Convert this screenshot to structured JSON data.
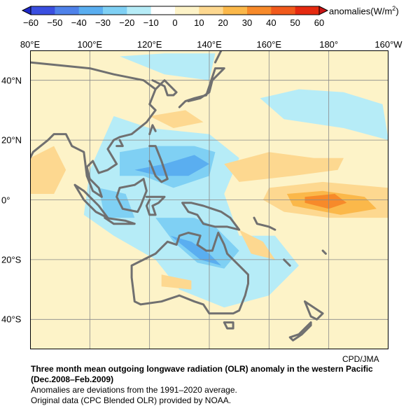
{
  "colorbar": {
    "unit_label": "anomalies(W/m",
    "unit_sup": "2",
    "unit_close": ")",
    "ticks": [
      "−60",
      "−50",
      "−40",
      "−30",
      "−20",
      "−10",
      "0",
      "10",
      "20",
      "30",
      "40",
      "50",
      "60"
    ],
    "colors": [
      "#3a4fe0",
      "#4f82ea",
      "#5aaef0",
      "#7fd0f4",
      "#b6ecf7",
      "#ffffff",
      "#fdf3c8",
      "#fdd890",
      "#fbb84a",
      "#f78a2a",
      "#f15a1c",
      "#e52a10"
    ]
  },
  "map": {
    "lon_labels": [
      "80°E",
      "100°E",
      "120°E",
      "140°E",
      "160°E",
      "180°",
      "160°W"
    ],
    "lat_labels": [
      "40°N",
      "20°N",
      "0°",
      "20°S",
      "40°S"
    ],
    "extent": {
      "lon": [
        80,
        200
      ],
      "lat": [
        -50,
        50
      ]
    },
    "grid_lons": [
      100,
      120,
      140,
      160,
      180
    ],
    "grid_lats": [
      40,
      20,
      0,
      -20,
      -40
    ],
    "coast_color": "#707070",
    "anomaly_regions": [
      {
        "level": "pos10",
        "pts": [
          [
            80,
            44
          ],
          [
            110,
            44
          ],
          [
            130,
            48
          ],
          [
            160,
            46
          ],
          [
            200,
            46
          ],
          [
            200,
            -30
          ],
          [
            180,
            -40
          ],
          [
            150,
            -30
          ],
          [
            120,
            -40
          ],
          [
            90,
            -45
          ],
          [
            80,
            -40
          ]
        ]
      },
      {
        "level": "neg10",
        "pts": [
          [
            108,
            28
          ],
          [
            120,
            24
          ],
          [
            140,
            22
          ],
          [
            150,
            14
          ],
          [
            145,
            2
          ],
          [
            150,
            -12
          ],
          [
            162,
            -12
          ],
          [
            170,
            -22
          ],
          [
            160,
            -32
          ],
          [
            145,
            -36
          ],
          [
            130,
            -30
          ],
          [
            122,
            -20
          ],
          [
            108,
            -12
          ],
          [
            98,
            -5
          ],
          [
            100,
            10
          ]
        ]
      },
      {
        "level": "neg10",
        "pts": [
          [
            157,
            34
          ],
          [
            170,
            37
          ],
          [
            185,
            36
          ],
          [
            198,
            32
          ],
          [
            200,
            20
          ],
          [
            185,
            24
          ],
          [
            165,
            27
          ]
        ]
      },
      {
        "level": "neg10",
        "pts": [
          [
            110,
            48
          ],
          [
            125,
            49
          ],
          [
            142,
            49
          ],
          [
            140,
            40
          ],
          [
            125,
            42
          ]
        ]
      },
      {
        "level": "neg20",
        "pts": [
          [
            110,
            16
          ],
          [
            122,
            18
          ],
          [
            135,
            18
          ],
          [
            142,
            16
          ],
          [
            140,
            8
          ],
          [
            128,
            4
          ],
          [
            118,
            8
          ],
          [
            110,
            8
          ]
        ]
      },
      {
        "level": "neg20",
        "pts": [
          [
            122,
            -6
          ],
          [
            135,
            -6
          ],
          [
            142,
            -9
          ],
          [
            150,
            -17
          ],
          [
            145,
            -23
          ],
          [
            136,
            -21
          ],
          [
            128,
            -14
          ]
        ]
      },
      {
        "level": "neg20",
        "pts": [
          [
            103,
            4
          ],
          [
            112,
            2
          ],
          [
            115,
            -6
          ],
          [
            105,
            -6
          ]
        ]
      },
      {
        "level": "neg30",
        "pts": [
          [
            115,
            10
          ],
          [
            125,
            12
          ],
          [
            135,
            15
          ],
          [
            140,
            12
          ],
          [
            133,
            8
          ],
          [
            123,
            8
          ]
        ]
      },
      {
        "level": "neg30",
        "pts": [
          [
            127,
            -12
          ],
          [
            134,
            -14
          ],
          [
            140,
            -18
          ],
          [
            144,
            -22
          ],
          [
            137,
            -20
          ]
        ]
      },
      {
        "level": "pos10",
        "pts": [
          [
            80,
            18
          ],
          [
            90,
            22
          ],
          [
            96,
            14
          ],
          [
            92,
            0
          ],
          [
            85,
            -4
          ],
          [
            80,
            -2
          ]
        ]
      },
      {
        "level": "pos20",
        "pts": [
          [
            80,
            14
          ],
          [
            88,
            18
          ],
          [
            92,
            10
          ],
          [
            88,
            2
          ],
          [
            80,
            2
          ]
        ]
      },
      {
        "level": "pos20",
        "pts": [
          [
            120,
            28
          ],
          [
            132,
            30
          ],
          [
            138,
            26
          ],
          [
            128,
            24
          ]
        ]
      },
      {
        "level": "pos20",
        "pts": [
          [
            124,
            -25
          ],
          [
            134,
            -27
          ],
          [
            134,
            -30
          ],
          [
            124,
            -29
          ]
        ]
      },
      {
        "level": "pos20",
        "pts": [
          [
            145,
            12
          ],
          [
            160,
            16
          ],
          [
            175,
            14
          ],
          [
            185,
            14
          ],
          [
            183,
            10
          ],
          [
            168,
            8
          ],
          [
            150,
            6
          ]
        ]
      },
      {
        "level": "pos20",
        "pts": [
          [
            150,
            -10
          ],
          [
            158,
            -14
          ],
          [
            162,
            -20
          ],
          [
            154,
            -18
          ]
        ]
      },
      {
        "level": "pos20",
        "pts": [
          [
            160,
            4
          ],
          [
            178,
            6
          ],
          [
            200,
            4
          ],
          [
            200,
            -6
          ],
          [
            180,
            -6
          ],
          [
            165,
            -4
          ],
          [
            158,
            0
          ]
        ]
      },
      {
        "level": "pos30",
        "pts": [
          [
            166,
            2
          ],
          [
            178,
            3
          ],
          [
            192,
            1
          ],
          [
            196,
            -3
          ],
          [
            184,
            -5
          ],
          [
            168,
            -2
          ]
        ]
      },
      {
        "level": "pos40",
        "pts": [
          [
            172,
            1
          ],
          [
            182,
            2
          ],
          [
            186,
            -1
          ],
          [
            180,
            -3
          ],
          [
            172,
            -1
          ]
        ]
      }
    ],
    "coastlines": [
      [
        [
          80,
          46
        ],
        [
          90,
          45
        ],
        [
          100,
          44
        ],
        [
          108,
          42
        ],
        [
          118,
          40
        ],
        [
          122,
          37
        ],
        [
          120,
          32
        ],
        [
          122,
          30
        ],
        [
          119,
          26
        ],
        [
          114,
          22
        ],
        [
          110,
          21
        ],
        [
          108,
          20
        ],
        [
          106,
          17
        ],
        [
          109,
          12
        ],
        [
          106,
          10
        ],
        [
          103,
          9
        ],
        [
          101,
          13
        ],
        [
          99,
          11
        ],
        [
          100,
          7
        ],
        [
          103,
          4
        ],
        [
          104,
          1
        ],
        [
          101,
          3
        ],
        [
          99,
          8
        ],
        [
          98,
          16
        ],
        [
          94,
          18
        ],
        [
          92,
          22
        ],
        [
          88,
          22
        ],
        [
          86,
          20
        ],
        [
          81,
          16
        ],
        [
          80,
          14
        ]
      ],
      [
        [
          122,
          37
        ],
        [
          125,
          40
        ],
        [
          129,
          36
        ],
        [
          128,
          35
        ],
        [
          126,
          35
        ],
        [
          125,
          38
        ],
        [
          121,
          40
        ]
      ],
      [
        [
          130,
          31
        ],
        [
          132,
          33
        ],
        [
          135,
          34
        ],
        [
          139,
          35
        ],
        [
          140,
          38
        ],
        [
          141,
          41
        ],
        [
          142,
          44
        ],
        [
          145,
          44
        ],
        [
          141,
          40
        ],
        [
          140,
          36
        ],
        [
          137,
          34
        ],
        [
          133,
          33
        ]
      ],
      [
        [
          142,
          46
        ],
        [
          144,
          50
        ],
        [
          143,
          52
        ]
      ],
      [
        [
          120,
          22
        ],
        [
          121,
          25
        ],
        [
          122,
          23
        ]
      ],
      [
        [
          110,
          20
        ],
        [
          111,
          18
        ],
        [
          109,
          18
        ]
      ],
      [
        [
          120,
          18
        ],
        [
          122,
          18
        ],
        [
          124,
          13
        ],
        [
          125,
          10
        ],
        [
          126,
          7
        ],
        [
          124,
          6
        ],
        [
          122,
          8
        ],
        [
          120,
          13
        ]
      ],
      [
        [
          95,
          5
        ],
        [
          98,
          3
        ],
        [
          103,
          -2
        ],
        [
          106,
          -6
        ],
        [
          102,
          -4
        ],
        [
          98,
          0
        ],
        [
          95,
          5
        ]
      ],
      [
        [
          105,
          -6
        ],
        [
          112,
          -7
        ],
        [
          115,
          -8
        ],
        [
          108,
          -8
        ],
        [
          105,
          -6
        ]
      ],
      [
        [
          109,
          1
        ],
        [
          110,
          4
        ],
        [
          115,
          5
        ],
        [
          118,
          7
        ],
        [
          119,
          3
        ],
        [
          117,
          -2
        ],
        [
          116,
          -4
        ],
        [
          111,
          -3
        ],
        [
          110,
          -1
        ],
        [
          109,
          1
        ]
      ],
      [
        [
          119,
          1
        ],
        [
          121,
          1
        ],
        [
          125,
          1
        ],
        [
          123,
          -1
        ],
        [
          121,
          -2
        ],
        [
          122,
          -5
        ],
        [
          120,
          -5
        ],
        [
          119,
          -2
        ],
        [
          120,
          0
        ]
      ],
      [
        [
          131,
          -1
        ],
        [
          134,
          -1
        ],
        [
          138,
          -2
        ],
        [
          141,
          -3
        ],
        [
          144,
          -4
        ],
        [
          147,
          -6
        ],
        [
          150,
          -10
        ],
        [
          146,
          -9
        ],
        [
          142,
          -9
        ],
        [
          138,
          -8
        ],
        [
          136,
          -5
        ],
        [
          133,
          -4
        ],
        [
          131,
          -1
        ]
      ],
      [
        [
          114,
          -22
        ],
        [
          114,
          -26
        ],
        [
          115,
          -34
        ],
        [
          117,
          -35
        ],
        [
          124,
          -34
        ],
        [
          130,
          -32
        ],
        [
          135,
          -34
        ],
        [
          138,
          -35
        ],
        [
          140,
          -38
        ],
        [
          145,
          -38
        ],
        [
          148,
          -38
        ],
        [
          150,
          -37
        ],
        [
          152,
          -32
        ],
        [
          153,
          -28
        ],
        [
          153,
          -25
        ],
        [
          150,
          -22
        ],
        [
          148,
          -20
        ],
        [
          146,
          -18
        ],
        [
          145,
          -15
        ],
        [
          143,
          -11
        ],
        [
          142,
          -14
        ],
        [
          141,
          -17
        ],
        [
          139,
          -17
        ],
        [
          136,
          -15
        ],
        [
          137,
          -12
        ],
        [
          133,
          -11
        ],
        [
          130,
          -12
        ],
        [
          129,
          -15
        ],
        [
          126,
          -14
        ],
        [
          124,
          -16
        ],
        [
          122,
          -18
        ],
        [
          118,
          -20
        ],
        [
          114,
          -22
        ]
      ],
      [
        [
          145,
          -41
        ],
        [
          148,
          -41
        ],
        [
          148,
          -43
        ],
        [
          146,
          -43
        ],
        [
          145,
          -41
        ]
      ],
      [
        [
          172,
          -34
        ],
        [
          175,
          -36
        ],
        [
          178,
          -38
        ],
        [
          176,
          -40
        ],
        [
          174,
          -39
        ],
        [
          172,
          -34
        ]
      ],
      [
        [
          174,
          -41
        ],
        [
          172,
          -43
        ],
        [
          170,
          -45
        ],
        [
          167,
          -46
        ],
        [
          168,
          -47
        ],
        [
          171,
          -45
        ],
        [
          174,
          -42
        ],
        [
          174,
          -41
        ]
      ],
      [
        [
          155,
          -6
        ],
        [
          156,
          -8
        ],
        [
          160,
          -9
        ],
        [
          162,
          -10
        ]
      ],
      [
        [
          165,
          -20
        ],
        [
          167,
          -22
        ]
      ],
      [
        [
          178,
          -17
        ],
        [
          179,
          -18
        ]
      ]
    ]
  },
  "credit": "CPD/JMA",
  "caption": {
    "title_line1": "Three month mean outgoing longwave radiation (OLR) anomaly in the western Pacific",
    "title_line2": "(Dec.2008–Feb.2009)",
    "line3": "Anomalies are deviations from the 1991–2020 average.",
    "line4": "Original data (CPC Blended OLR) provided by NOAA."
  }
}
